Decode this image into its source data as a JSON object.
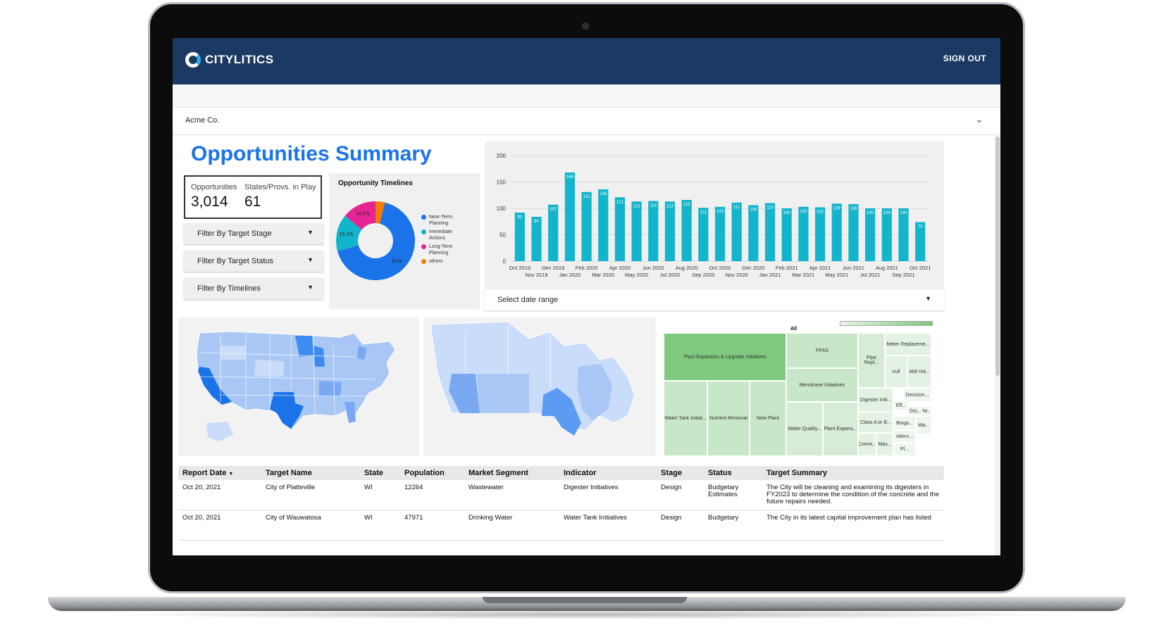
{
  "app": {
    "brand": "CITYLITICS",
    "sign_out": "SIGN OUT",
    "account": "Acme Co."
  },
  "page": {
    "title": "Opportunities Summary"
  },
  "kpis": [
    {
      "label": "Opportunities",
      "value": "3,014"
    },
    {
      "label": "States/Provs. in Play",
      "value": "61"
    }
  ],
  "filters": [
    "Filter By Target Stage",
    "Filter By Target Status",
    "Filter By Timelines"
  ],
  "donut": {
    "title": "Opportunity Timelines",
    "slices": [
      {
        "label": "Near-Term Planning",
        "value": 67,
        "text": "67%",
        "color": "#1a73e8"
      },
      {
        "label": "Immediate Actions",
        "value": 15.1,
        "text": "15.1%",
        "color": "#12b5cb"
      },
      {
        "label": "Long-Term Planning",
        "value": 14.1,
        "text": "14.1%",
        "color": "#e52592"
      },
      {
        "label": "others",
        "value": 3.8,
        "text": "",
        "color": "#f57c00"
      }
    ]
  },
  "chart_data": {
    "type": "bar",
    "categories": [
      "Oct 2019",
      "Nov 2019",
      "Dec 2019",
      "Jan 2020",
      "Feb 2020",
      "Mar 2020",
      "Apr 2020",
      "May 2020",
      "Jun 2020",
      "Jul 2020",
      "Aug 2020",
      "Sep 2020",
      "Oct 2020",
      "Nov 2020",
      "Dec 2020",
      "Jan 2021",
      "Feb 2021",
      "Mar 2021",
      "Apr 2021",
      "May 2021",
      "Jun 2021",
      "Jul 2021",
      "Aug 2021",
      "Sep 2021",
      "Oct 2021"
    ],
    "values": [
      92,
      84,
      107,
      168,
      131,
      136,
      121,
      113,
      114,
      113,
      116,
      101,
      103,
      111,
      106,
      110,
      100,
      103,
      102,
      109,
      108,
      100,
      100,
      100,
      74
    ],
    "ylim": [
      0,
      200
    ],
    "yticks": [
      0,
      50,
      100,
      150,
      200
    ],
    "color": "#12b5cb",
    "grid": true
  },
  "date_range": {
    "label": "Select date range"
  },
  "treemap": {
    "root": "All",
    "cells": [
      "Plant Expansion & Upgrade Initiatives",
      "PFAS",
      "Meter Replaceme...",
      "Pipe Repl...",
      "null",
      "AMI Init...",
      "Membrane Initiatives",
      "Water Tank Initiat...",
      "Nutrient Removal",
      "New Plant",
      "Digester Initi...",
      "Decision...",
      "Eff...",
      "Disi...",
      "Re...",
      "Water Quality...",
      "Plant Expans...",
      "Class A or B...",
      "Bioga...",
      "Wa...",
      "Conve...",
      "Mas...",
      "Altern...",
      "Pl..."
    ]
  },
  "table": {
    "columns": [
      "Report Date",
      "Target Name",
      "State",
      "Population",
      "Market Segment",
      "Indicator",
      "Stage",
      "Status",
      "Target Summary"
    ],
    "sort_indicator": "▼",
    "rows": [
      [
        "Oct 20, 2021",
        "City of Platteville",
        "WI",
        "12264",
        "Wastewater",
        "Digester Initiatives",
        "Design",
        "Budgetary Estimates",
        "The City will be cleaning and examining its digesters in FY2023 to determine the condition of the concrete and the future repairs needed."
      ],
      [
        "Oct 20, 2021",
        "City of Wauwatosa",
        "WI",
        "47971",
        "Drinking Water",
        "Water Tank Initiatives",
        "Design",
        "Budgetary",
        "The City in its latest capital improvement plan has listed"
      ]
    ]
  }
}
